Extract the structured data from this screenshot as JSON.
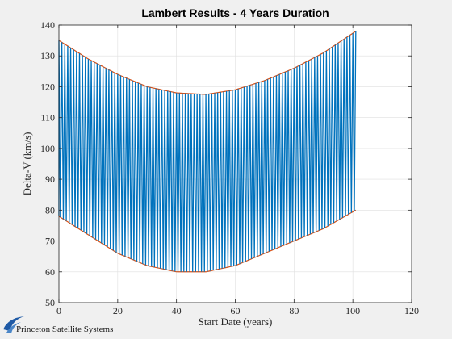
{
  "chart_data": {
    "type": "line",
    "title": "Lambert Results - 4 Years Duration",
    "xlabel": "Start Date (years)",
    "ylabel": "Delta-V (km/s)",
    "xlim": [
      0,
      120
    ],
    "ylim": [
      50,
      140
    ],
    "xticks": [
      0,
      20,
      40,
      60,
      80,
      100,
      120
    ],
    "yticks": [
      50,
      60,
      70,
      80,
      90,
      100,
      110,
      120,
      130,
      140
    ],
    "grid": true,
    "legend": "none",
    "x_range": [
      0,
      101
    ],
    "oscillation_cycles": 101,
    "upper_envelope": {
      "x": [
        0,
        10,
        20,
        30,
        40,
        50,
        60,
        70,
        80,
        90,
        101
      ],
      "y": [
        135,
        129,
        124,
        120,
        118,
        117.5,
        119,
        122,
        126,
        131,
        138
      ]
    },
    "lower_envelope": {
      "x": [
        0,
        10,
        20,
        30,
        40,
        50,
        60,
        70,
        80,
        90,
        101
      ],
      "y": [
        78,
        72,
        66,
        62,
        60,
        60,
        62,
        66,
        70,
        74,
        80
      ]
    },
    "series": [
      {
        "color": "#0072bd"
      },
      {
        "color": "#d95319"
      }
    ]
  },
  "logo": {
    "text": "Princeton Satellite Systems",
    "color": "#1f5aa6"
  }
}
